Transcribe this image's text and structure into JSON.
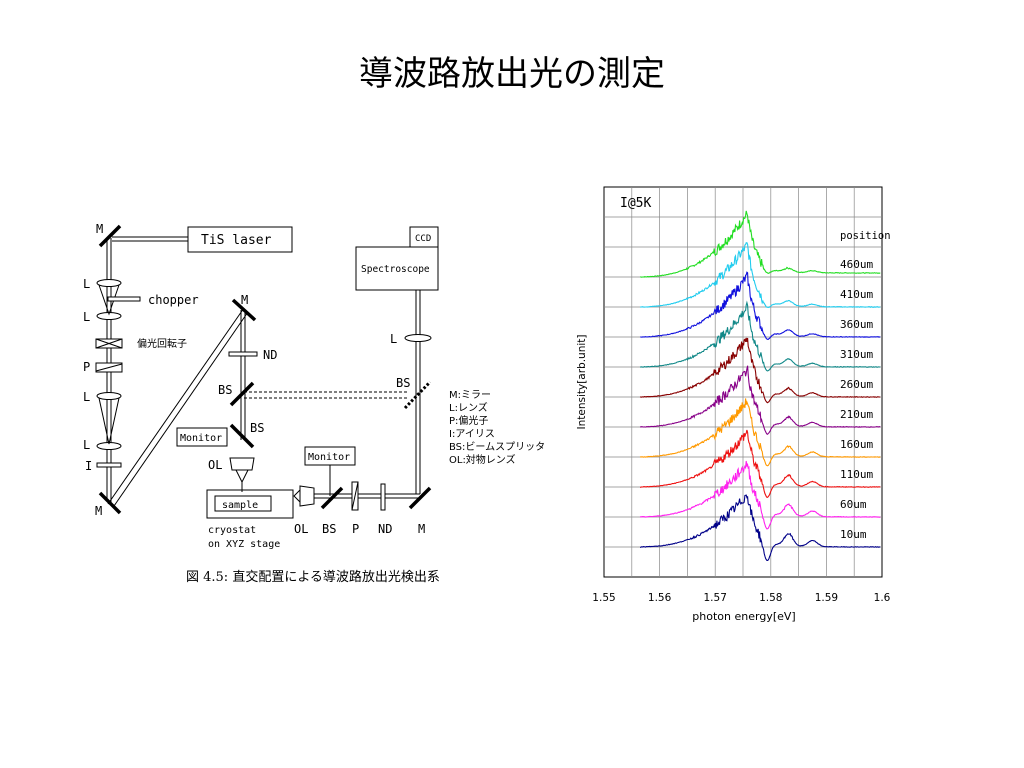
{
  "slide": {
    "title": "導波路放出光の測定"
  },
  "diagram": {
    "labels": {
      "laser": "TiS laser",
      "ccd": "CCD",
      "spectroscope": "Spectroscope",
      "chopper": "chopper",
      "polarization_rotator": "偏光回転子",
      "nd": "ND",
      "monitor": "Monitor",
      "sample": "sample",
      "cryostat": "cryostat",
      "stage": "on XYZ stage",
      "m": "M",
      "l": "L",
      "p": "P",
      "i": "I",
      "bs": "BS",
      "ol": "OL"
    },
    "legend": [
      "M:ミラー",
      "L:レンズ",
      "P:偏光子",
      "I:アイリス",
      "BS:ビームスプリッタ",
      "OL:対物レンズ"
    ],
    "caption": "図 4.5:  直交配置による導波路放出光検出系"
  },
  "chart_data": {
    "type": "line",
    "title": "I@5K",
    "xlabel": "photon energy[eV]",
    "ylabel": "Intensity[arb.unit]",
    "xlim": [
      1.55,
      1.6
    ],
    "x_ticks": [
      "1.55",
      "1.56",
      "1.57",
      "1.58",
      "1.59",
      "1.6"
    ],
    "grid": true,
    "legend_title": "position",
    "peak_energy": 1.5757,
    "series": [
      {
        "name": "460um",
        "color": "#22dd22"
      },
      {
        "name": "410um",
        "color": "#22ccee"
      },
      {
        "name": "360um",
        "color": "#1111dd"
      },
      {
        "name": "310um",
        "color": "#118888"
      },
      {
        "name": "260um",
        "color": "#880000"
      },
      {
        "name": "210um",
        "color": "#880088"
      },
      {
        "name": "160um",
        "color": "#ff9900"
      },
      {
        "name": "110um",
        "color": "#ee1111"
      },
      {
        "name": "60um",
        "color": "#ff22ee"
      },
      {
        "name": "10um",
        "color": "#000088"
      }
    ]
  }
}
